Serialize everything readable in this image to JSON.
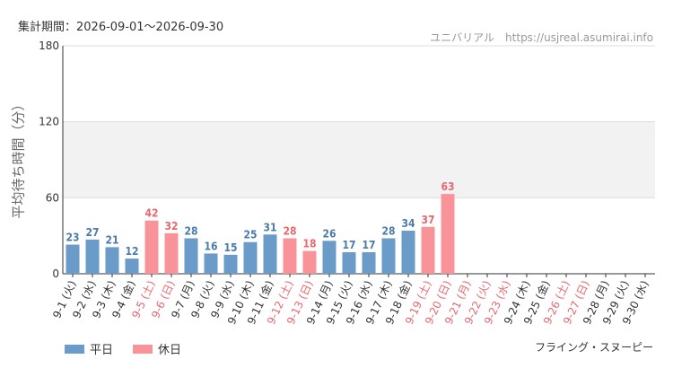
{
  "header": {
    "period": "集計期間：2026-09-01～2026-09-30",
    "source": "ユニバリアル　https://usjreal.asumirai.info"
  },
  "footer": {
    "attraction": "フライング・スヌーピー"
  },
  "chart_data": {
    "type": "bar",
    "ylabel": "平均待ち時間（分）",
    "ylim": [
      0,
      180
    ],
    "yticks": [
      0,
      60,
      120,
      180
    ],
    "shaded_band": [
      60,
      120
    ],
    "legend": [
      {
        "name": "平日",
        "color": "#6b9bc9"
      },
      {
        "name": "休日",
        "color": "#f9939a"
      }
    ],
    "colors": {
      "weekday": "#6b9bc9",
      "holiday": "#f9939a",
      "weekday_label": "#4a7bab",
      "holiday_label": "#e8676f",
      "axis_text": "#333333"
    },
    "categories": [
      "9-1 (火)",
      "9-2 (水)",
      "9-3 (木)",
      "9-4 (金)",
      "9-5 (土)",
      "9-6 (日)",
      "9-7 (月)",
      "9-8 (火)",
      "9-9 (水)",
      "9-10 (木)",
      "9-11 (金)",
      "9-12 (土)",
      "9-13 (日)",
      "9-14 (月)",
      "9-15 (火)",
      "9-16 (水)",
      "9-17 (木)",
      "9-18 (金)",
      "9-19 (土)",
      "9-20 (日)",
      "9-21 (月)",
      "9-22 (火)",
      "9-23 (水)",
      "9-24 (木)",
      "9-25 (金)",
      "9-26 (土)",
      "9-27 (日)",
      "9-28 (月)",
      "9-29 (火)",
      "9-30 (水)"
    ],
    "values": [
      23,
      27,
      21,
      12,
      42,
      32,
      28,
      16,
      15,
      25,
      31,
      28,
      18,
      26,
      17,
      17,
      28,
      34,
      37,
      63,
      null,
      null,
      null,
      null,
      null,
      null,
      null,
      null,
      null,
      null
    ],
    "holiday": [
      false,
      false,
      false,
      false,
      true,
      true,
      false,
      false,
      false,
      false,
      false,
      true,
      true,
      false,
      false,
      false,
      false,
      false,
      true,
      true,
      true,
      true,
      true,
      false,
      false,
      true,
      true,
      false,
      false,
      false
    ]
  }
}
